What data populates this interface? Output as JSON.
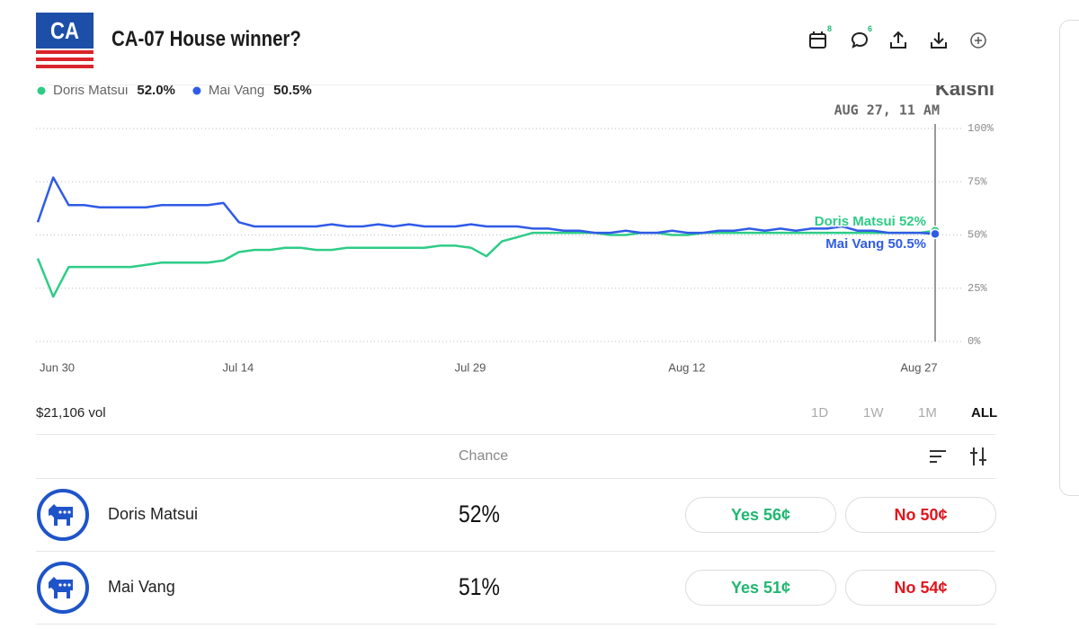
{
  "header": {
    "badge": "CA",
    "title": "CA-07 House winner?",
    "calendar_count": "8",
    "comment_count": "6"
  },
  "chart_data": {
    "type": "line",
    "watermark": "Kalshi",
    "hover_label": "AUG 27, 11 AM",
    "x": [
      "Jun 30",
      "Jul 1",
      "Jul 2",
      "Jul 3",
      "Jul 4",
      "Jul 5",
      "Jul 6",
      "Jul 7",
      "Jul 8",
      "Jul 9",
      "Jul 10",
      "Jul 11",
      "Jul 12",
      "Jul 13",
      "Jul 14",
      "Jul 15",
      "Jul 16",
      "Jul 17",
      "Jul 18",
      "Jul 19",
      "Jul 20",
      "Jul 21",
      "Jul 22",
      "Jul 23",
      "Jul 24",
      "Jul 25",
      "Jul 26",
      "Jul 27",
      "Jul 28",
      "Jul 29",
      "Jul 30",
      "Jul 31",
      "Aug 1",
      "Aug 2",
      "Aug 3",
      "Aug 4",
      "Aug 5",
      "Aug 6",
      "Aug 7",
      "Aug 8",
      "Aug 9",
      "Aug 10",
      "Aug 11",
      "Aug 12",
      "Aug 13",
      "Aug 14",
      "Aug 15",
      "Aug 16",
      "Aug 17",
      "Aug 18",
      "Aug 19",
      "Aug 20",
      "Aug 21",
      "Aug 22",
      "Aug 23",
      "Aug 24",
      "Aug 25",
      "Aug 26",
      "Aug 27"
    ],
    "xticks": [
      "Jun 30",
      "Jul 14",
      "Jul 29",
      "Aug 12",
      "Aug 27"
    ],
    "ylim": [
      0,
      100
    ],
    "yticks": [
      {
        "value": 0,
        "label": "0%"
      },
      {
        "value": 25,
        "label": "25%"
      },
      {
        "value": 50,
        "label": "50%"
      },
      {
        "value": 75,
        "label": "75%"
      },
      {
        "value": 100,
        "label": "100%"
      }
    ],
    "grid": true,
    "series": [
      {
        "name": "Doris Matsui",
        "color": "#2ecc87",
        "current": {
          "value": 52.0,
          "label": "52.0%"
        },
        "end_label": "Doris Matsui 52%",
        "values": [
          39,
          21,
          35,
          35,
          35,
          35,
          35,
          36,
          37,
          37,
          37,
          37,
          38,
          42,
          43,
          43,
          44,
          44,
          43,
          43,
          44,
          44,
          44,
          44,
          44,
          44,
          45,
          45,
          44,
          40,
          47,
          49,
          51,
          51,
          51,
          51,
          51,
          50,
          50,
          51,
          51,
          50,
          50,
          51,
          51,
          51,
          51,
          51,
          51,
          51,
          51,
          51,
          51,
          51,
          51,
          51,
          51,
          51,
          52
        ]
      },
      {
        "name": "Mai Vang",
        "color": "#2f5be6",
        "current": {
          "value": 50.5,
          "label": "50.5%"
        },
        "end_label": "Mai Vang 50.5%",
        "values": [
          56,
          77,
          64,
          64,
          63,
          63,
          63,
          63,
          64,
          64,
          64,
          64,
          65,
          56,
          54,
          54,
          54,
          54,
          54,
          55,
          54,
          54,
          55,
          54,
          55,
          54,
          54,
          54,
          55,
          54,
          54,
          54,
          53,
          53,
          52,
          52,
          51,
          51,
          52,
          51,
          51,
          52,
          51,
          51,
          52,
          52,
          53,
          52,
          53,
          52,
          53,
          53,
          54,
          52,
          52,
          51,
          51,
          51,
          50.5
        ]
      }
    ]
  },
  "stats": {
    "volume": "$21,106 vol",
    "ranges": [
      "1D",
      "1W",
      "1M",
      "ALL"
    ],
    "selected_range": "ALL"
  },
  "table": {
    "header": "Chance",
    "rows": [
      {
        "name": "Doris Matsui",
        "chance": "52%",
        "yes": "Yes 56¢",
        "no": "No 50¢"
      },
      {
        "name": "Mai Vang",
        "chance": "51%",
        "yes": "Yes 51¢",
        "no": "No 54¢"
      }
    ]
  }
}
